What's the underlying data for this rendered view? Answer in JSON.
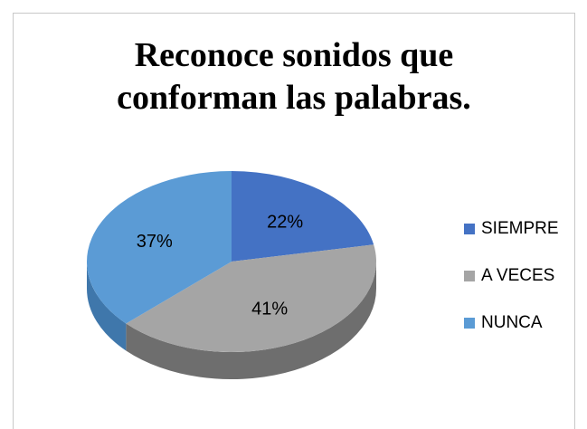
{
  "chart_data": {
    "type": "pie",
    "title": [
      "Reconoce sonidos que",
      "conforman las palabras."
    ],
    "categories": [
      "SIEMPRE",
      "A VECES",
      "NUNCA"
    ],
    "values": [
      22,
      41,
      37
    ],
    "labels": [
      "22%",
      "41%",
      "37%"
    ],
    "colors": [
      "#4472C4",
      "#A5A5A5",
      "#5B9BD5"
    ],
    "side_colors": [
      "#2F5597",
      "#6E6E6E",
      "#3F77AB"
    ],
    "legend": "right",
    "style": "3d"
  }
}
